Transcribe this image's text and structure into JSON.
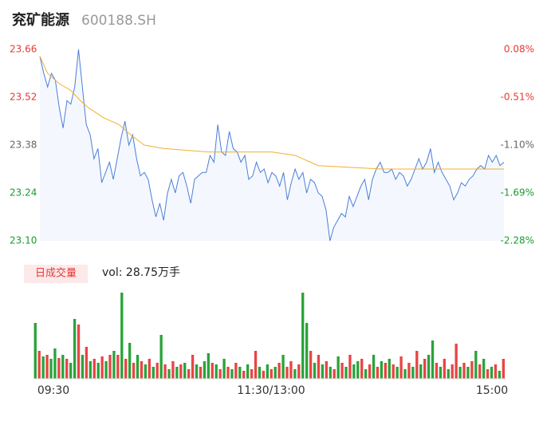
{
  "chart_data": {
    "type": "line",
    "title": "兖矿能源",
    "subtitle": "600188.SH",
    "x": [
      0,
      2,
      4,
      6,
      8,
      10,
      12,
      14,
      16,
      18,
      20,
      22,
      24,
      26,
      28,
      30,
      32,
      34,
      36,
      38,
      40,
      42,
      44,
      46,
      48,
      50,
      52,
      54,
      56,
      58,
      60,
      62,
      64,
      66,
      68,
      70,
      72,
      74,
      76,
      78,
      80,
      82,
      84,
      86,
      88,
      90,
      92,
      94,
      96,
      98,
      100,
      102,
      104,
      106,
      108,
      110,
      112,
      114,
      116,
      118,
      120,
      122,
      124,
      126,
      128,
      130,
      132,
      134,
      136,
      138,
      140,
      142,
      144,
      146,
      148,
      150,
      152,
      154,
      156,
      158,
      160,
      162,
      164,
      166,
      168,
      170,
      172,
      174,
      176,
      178,
      180,
      182,
      184,
      186,
      188,
      190,
      192,
      194,
      196,
      198,
      200,
      202,
      204,
      206,
      208,
      210,
      212,
      214,
      216,
      218,
      220,
      222,
      224,
      226,
      228,
      230,
      232,
      234,
      236,
      238,
      240
    ],
    "xlim": [
      0,
      240
    ],
    "x_labels": [
      "09:30",
      "11:30/13:00",
      "15:00"
    ],
    "ylim": [
      23.1,
      23.66
    ],
    "yticks": [
      23.66,
      23.52,
      23.38,
      23.24,
      {
        "value": 23.1,
        "label": "23.10"
      }
    ],
    "ytick_colors": [
      "#e53935",
      "#e53935",
      "#666666",
      "#1a9b30",
      "#1a9b30"
    ],
    "y2lim": [
      -2.28,
      0.08
    ],
    "y2ticks": [
      {
        "value": 0.08,
        "label": "0.08%"
      },
      {
        "value": -0.51,
        "label": "-0.51%"
      },
      {
        "value": -1.1,
        "label": "-1.10%"
      },
      {
        "value": -1.69,
        "label": "-1.69%"
      },
      {
        "value": -2.28,
        "label": "-2.28%"
      }
    ],
    "y2tick_colors": [
      "#e53935",
      "#e53935",
      "#666666",
      "#1a9b30",
      "#1a9b30"
    ],
    "series": [
      {
        "color": "#4a7fd8",
        "area_color": "#f4f7fd",
        "values": [
          23.64,
          23.59,
          23.55,
          23.59,
          23.57,
          23.49,
          23.43,
          23.51,
          23.5,
          23.55,
          23.66,
          23.55,
          23.44,
          23.41,
          23.34,
          23.37,
          23.27,
          23.3,
          23.33,
          23.28,
          23.34,
          23.4,
          23.45,
          23.38,
          23.41,
          23.34,
          23.29,
          23.3,
          23.28,
          23.22,
          23.17,
          23.21,
          23.16,
          23.24,
          23.28,
          23.24,
          23.29,
          23.3,
          23.26,
          23.21,
          23.28,
          23.29,
          23.3,
          23.3,
          23.35,
          23.33,
          23.44,
          23.36,
          23.35,
          23.42,
          23.37,
          23.36,
          23.33,
          23.35,
          23.28,
          23.29,
          23.33,
          23.3,
          23.31,
          23.27,
          23.3,
          23.29,
          23.26,
          23.3,
          23.22,
          23.27,
          23.31,
          23.28,
          23.3,
          23.24,
          23.28,
          23.27,
          23.24,
          23.23,
          23.19,
          23.1,
          23.14,
          23.16,
          23.18,
          23.17,
          23.23,
          23.2,
          23.23,
          23.26,
          23.28,
          23.22,
          23.28,
          23.31,
          23.33,
          23.3,
          23.3,
          23.31,
          23.28,
          23.3,
          23.29,
          23.26,
          23.28,
          23.31,
          23.34,
          23.31,
          23.33,
          23.37,
          23.3,
          23.33,
          23.3,
          23.28,
          23.26,
          23.22,
          23.24,
          23.27,
          23.26,
          23.28,
          23.29,
          23.31,
          23.32,
          23.31,
          23.35,
          23.33,
          23.35,
          23.32,
          23.33
        ]
      },
      {
        "color": "#f0b030",
        "x": [
          0,
          4,
          10,
          16,
          21,
          25,
          33,
          41,
          47,
          54,
          64,
          87,
          103,
          120,
          132,
          144,
          177,
          240
        ],
        "values": [
          23.64,
          23.59,
          23.56,
          23.54,
          23.51,
          23.49,
          23.46,
          23.44,
          23.41,
          23.38,
          23.37,
          23.36,
          23.36,
          23.36,
          23.35,
          23.32,
          23.31,
          23.31
        ]
      }
    ],
    "volume": {
      "title": "日成交量",
      "summary": "vol: 28.75万手",
      "up_color": "#e84545",
      "down_color": "#2aa33a",
      "values": [
        4200,
        2100,
        1680,
        1800,
        1500,
        2280,
        1560,
        1800,
        1500,
        1200,
        4500,
        4080,
        1800,
        2400,
        1320,
        1500,
        1200,
        1680,
        1320,
        1800,
        2100,
        1800,
        6480,
        1500,
        2700,
        1200,
        1800,
        1320,
        1080,
        1500,
        900,
        1200,
        3300,
        1080,
        720,
        1320,
        900,
        1080,
        1200,
        720,
        1800,
        1080,
        900,
        1320,
        1920,
        1200,
        1080,
        720,
        1500,
        900,
        720,
        1200,
        900,
        600,
        1080,
        720,
        2100,
        900,
        600,
        1080,
        720,
        900,
        1200,
        1800,
        900,
        1320,
        720,
        1080,
        6480,
        4200,
        2100,
        1200,
        1800,
        1080,
        1320,
        900,
        720,
        1680,
        1200,
        900,
        1800,
        1080,
        1320,
        1500,
        720,
        1080,
        1800,
        900,
        1320,
        1200,
        1500,
        1080,
        900,
        1680,
        720,
        1200,
        900,
        2100,
        1080,
        1500,
        1800,
        2880,
        1200,
        900,
        1500,
        720,
        1080,
        2640,
        900,
        1200,
        900,
        1320,
        2100,
        1080,
        1500,
        720,
        900,
        1080,
        600,
        1500
      ],
      "up": [
        false,
        true,
        false,
        true,
        false,
        false,
        true,
        false,
        true,
        false,
        false,
        true,
        false,
        true,
        false,
        true,
        false,
        true,
        false,
        true,
        false,
        true,
        false,
        true,
        false,
        true,
        false,
        true,
        false,
        true,
        false,
        true,
        false,
        true,
        false,
        true,
        false,
        true,
        false,
        true,
        true,
        false,
        true,
        false,
        false,
        true,
        false,
        true,
        false,
        true,
        false,
        true,
        false,
        true,
        false,
        true,
        true,
        false,
        true,
        false,
        true,
        false,
        true,
        false,
        true,
        true,
        false,
        true,
        false,
        false,
        true,
        false,
        true,
        false,
        true,
        false,
        true,
        false,
        true,
        false,
        true,
        false,
        false,
        true,
        false,
        true,
        false,
        true,
        false,
        true,
        false,
        true,
        false,
        true,
        false,
        true,
        false,
        true,
        false,
        true,
        false,
        false,
        true,
        false,
        true,
        false,
        true,
        true,
        false,
        true,
        false,
        true,
        false,
        true,
        false,
        true,
        false,
        true,
        false,
        true
      ]
    }
  }
}
